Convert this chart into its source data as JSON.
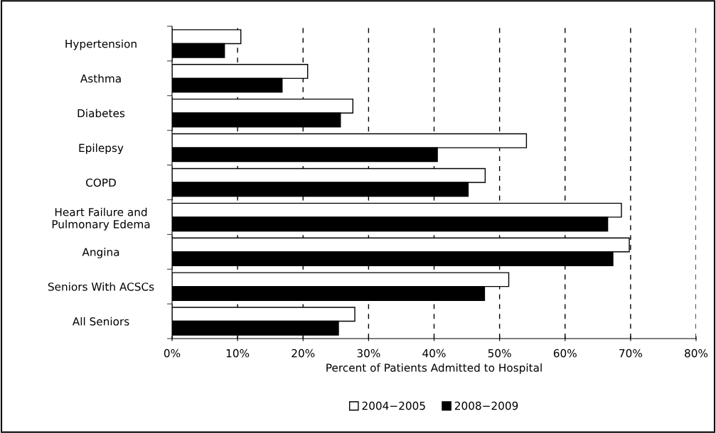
{
  "chart_data": {
    "type": "bar",
    "orientation": "horizontal",
    "categories": [
      "Hypertension",
      "Asthma",
      "Diabetes",
      "Epilepsy",
      "COPD",
      "Heart Failure and\nPulmonary Edema",
      "Angina",
      "Seniors With ACSCs",
      "All Seniors"
    ],
    "series": [
      {
        "name": "2004−2005",
        "color": "#ffffff",
        "values": [
          10.5,
          20.7,
          27.6,
          54.1,
          47.8,
          68.6,
          69.8,
          51.4,
          27.9
        ]
      },
      {
        "name": "2008−2009",
        "color": "#000000",
        "values": [
          8.0,
          16.8,
          25.7,
          40.5,
          45.2,
          66.5,
          67.3,
          47.7,
          25.4
        ]
      }
    ],
    "xlabel": "Percent of Patients Admitted to Hospital",
    "xlim": [
      0,
      80
    ],
    "xticks": [
      {
        "value": 0,
        "label": "0%"
      },
      {
        "value": 10,
        "label": "10%"
      },
      {
        "value": 20,
        "label": "20%"
      },
      {
        "value": 30,
        "label": "30%"
      },
      {
        "value": 40,
        "label": "40%"
      },
      {
        "value": 50,
        "label": "50%"
      },
      {
        "value": 60,
        "label": "60%"
      },
      {
        "value": 70,
        "label": "70%"
      },
      {
        "value": 80,
        "label": "80%"
      }
    ],
    "grid": "x",
    "legend": "bottom"
  }
}
